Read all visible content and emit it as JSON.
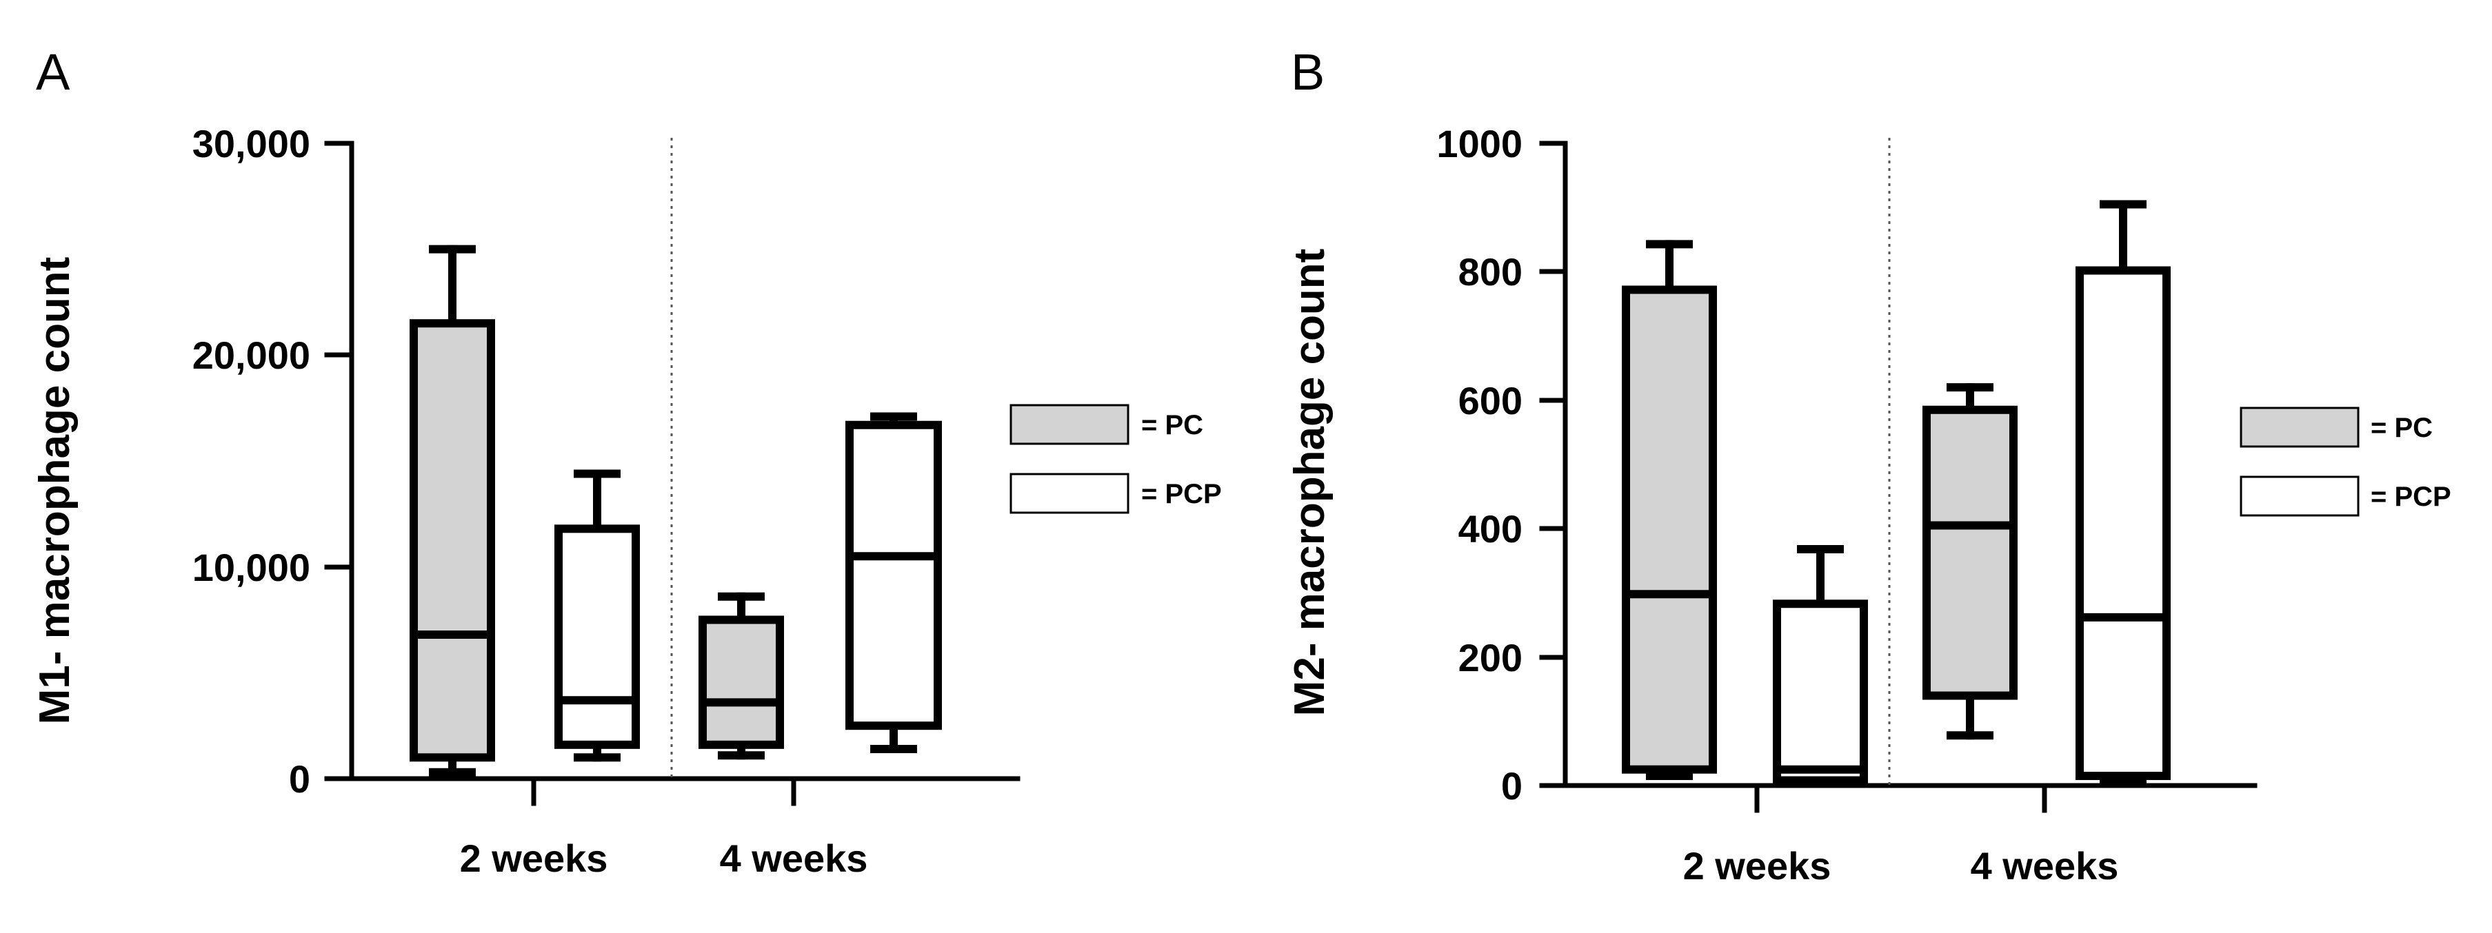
{
  "chart_data": [
    {
      "type": "box",
      "panel": "A",
      "ylabel": "M1- macrophage count",
      "ylim": [
        0,
        30000
      ],
      "yticks": [
        0,
        10000,
        20000,
        30000
      ],
      "ytick_labels": [
        "0",
        "10,000",
        "20,000",
        "30,000"
      ],
      "categories": [
        "2 weeks",
        "4 weeks"
      ],
      "legend": [
        {
          "label": "= PC",
          "fill": "#d3d3d3"
        },
        {
          "label": "= PCP",
          "fill": "#ffffff"
        }
      ],
      "series": [
        {
          "name": "PC",
          "fill": "#d3d3d3",
          "boxes": [
            {
              "category": "2 weeks",
              "min": 300,
              "q1": 1000,
              "median": 6800,
              "q3": 21500,
              "max": 25000
            },
            {
              "category": "4 weeks",
              "min": 1100,
              "q1": 1600,
              "median": 3600,
              "q3": 7500,
              "max": 8600
            }
          ]
        },
        {
          "name": "PCP",
          "fill": "#ffffff",
          "boxes": [
            {
              "category": "2 weeks",
              "min": 1000,
              "q1": 1600,
              "median": 3700,
              "q3": 11800,
              "max": 14400
            },
            {
              "category": "4 weeks",
              "min": 1400,
              "q1": 2500,
              "median": 10500,
              "q3": 16700,
              "max": 17100
            }
          ]
        }
      ]
    },
    {
      "type": "box",
      "panel": "B",
      "ylabel": "M2- macrophage count",
      "ylim": [
        0,
        1000
      ],
      "yticks": [
        0,
        200,
        400,
        600,
        800,
        1000
      ],
      "ytick_labels": [
        "0",
        "200",
        "400",
        "600",
        "800",
        "1000"
      ],
      "categories": [
        "2 weeks",
        "4 weeks"
      ],
      "legend": [
        {
          "label": "= PC",
          "fill": "#d3d3d3"
        },
        {
          "label": "= PCP",
          "fill": "#ffffff"
        }
      ],
      "series": [
        {
          "name": "PC",
          "fill": "#d3d3d3",
          "boxes": [
            {
              "category": "2 weeks",
              "min": 15,
              "q1": 25,
              "median": 298,
              "q3": 772,
              "max": 843
            },
            {
              "category": "4 weeks",
              "min": 78,
              "q1": 140,
              "median": 405,
              "q3": 585,
              "max": 620
            }
          ]
        },
        {
          "name": "PCP",
          "fill": "#ffffff",
          "boxes": [
            {
              "category": "2 weeks",
              "min": 5,
              "q1": 8,
              "median": 25,
              "q3": 283,
              "max": 368
            },
            {
              "category": "4 weeks",
              "min": 5,
              "q1": 15,
              "median": 262,
              "q3": 802,
              "max": 905
            }
          ]
        }
      ]
    }
  ]
}
